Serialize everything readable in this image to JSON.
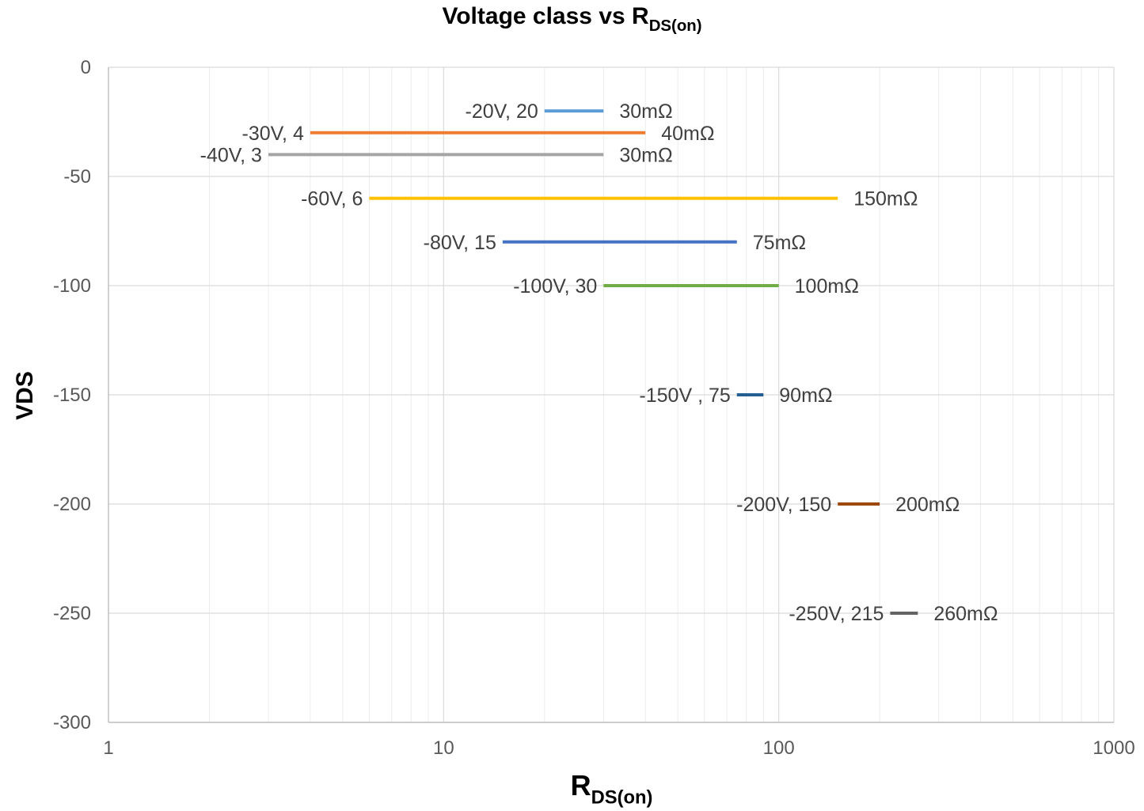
{
  "chart_data": {
    "type": "line",
    "title_main": "Voltage class vs R",
    "title_sub": "DS(on)",
    "xlabel_main": "R",
    "xlabel_sub": "DS(on)",
    "ylabel": "VDS",
    "x_scale": "log",
    "xlim": [
      1,
      1000
    ],
    "ylim": [
      -300,
      0
    ],
    "x_ticks": [
      "1",
      "10",
      "100",
      "1000"
    ],
    "y_ticks": [
      "0",
      "-50",
      "-100",
      "-150",
      "-200",
      "-250",
      "-300"
    ],
    "grid": true,
    "legend": "none",
    "series": [
      {
        "vds": -20,
        "rmin": 20,
        "rmax": 30,
        "left_label": "-20V, 20",
        "right_label": "30mΩ",
        "color": "#5b9bd5"
      },
      {
        "vds": -30,
        "rmin": 4,
        "rmax": 40,
        "left_label": "-30V, 4",
        "right_label": "40mΩ",
        "color": "#ed7d31"
      },
      {
        "vds": -40,
        "rmin": 3,
        "rmax": 30,
        "left_label": "-40V, 3",
        "right_label": "30mΩ",
        "color": "#a5a5a5"
      },
      {
        "vds": -60,
        "rmin": 6,
        "rmax": 150,
        "left_label": "-60V, 6",
        "right_label": "150mΩ",
        "color": "#ffc000"
      },
      {
        "vds": -80,
        "rmin": 15,
        "rmax": 75,
        "left_label": "-80V, 15",
        "right_label": "75mΩ",
        "color": "#4472c4"
      },
      {
        "vds": -100,
        "rmin": 30,
        "rmax": 100,
        "left_label": "-100V, 30",
        "right_label": "100mΩ",
        "color": "#70ad47"
      },
      {
        "vds": -150,
        "rmin": 75,
        "rmax": 90,
        "left_label": "-150V , 75",
        "right_label": "90mΩ",
        "color": "#255e91"
      },
      {
        "vds": -200,
        "rmin": 150,
        "rmax": 200,
        "left_label": "-200V, 150",
        "right_label": "200mΩ",
        "color": "#9e480e"
      },
      {
        "vds": -250,
        "rmin": 215,
        "rmax": 260,
        "left_label": "-250V, 215",
        "right_label": "260mΩ",
        "color": "#636363"
      }
    ]
  }
}
